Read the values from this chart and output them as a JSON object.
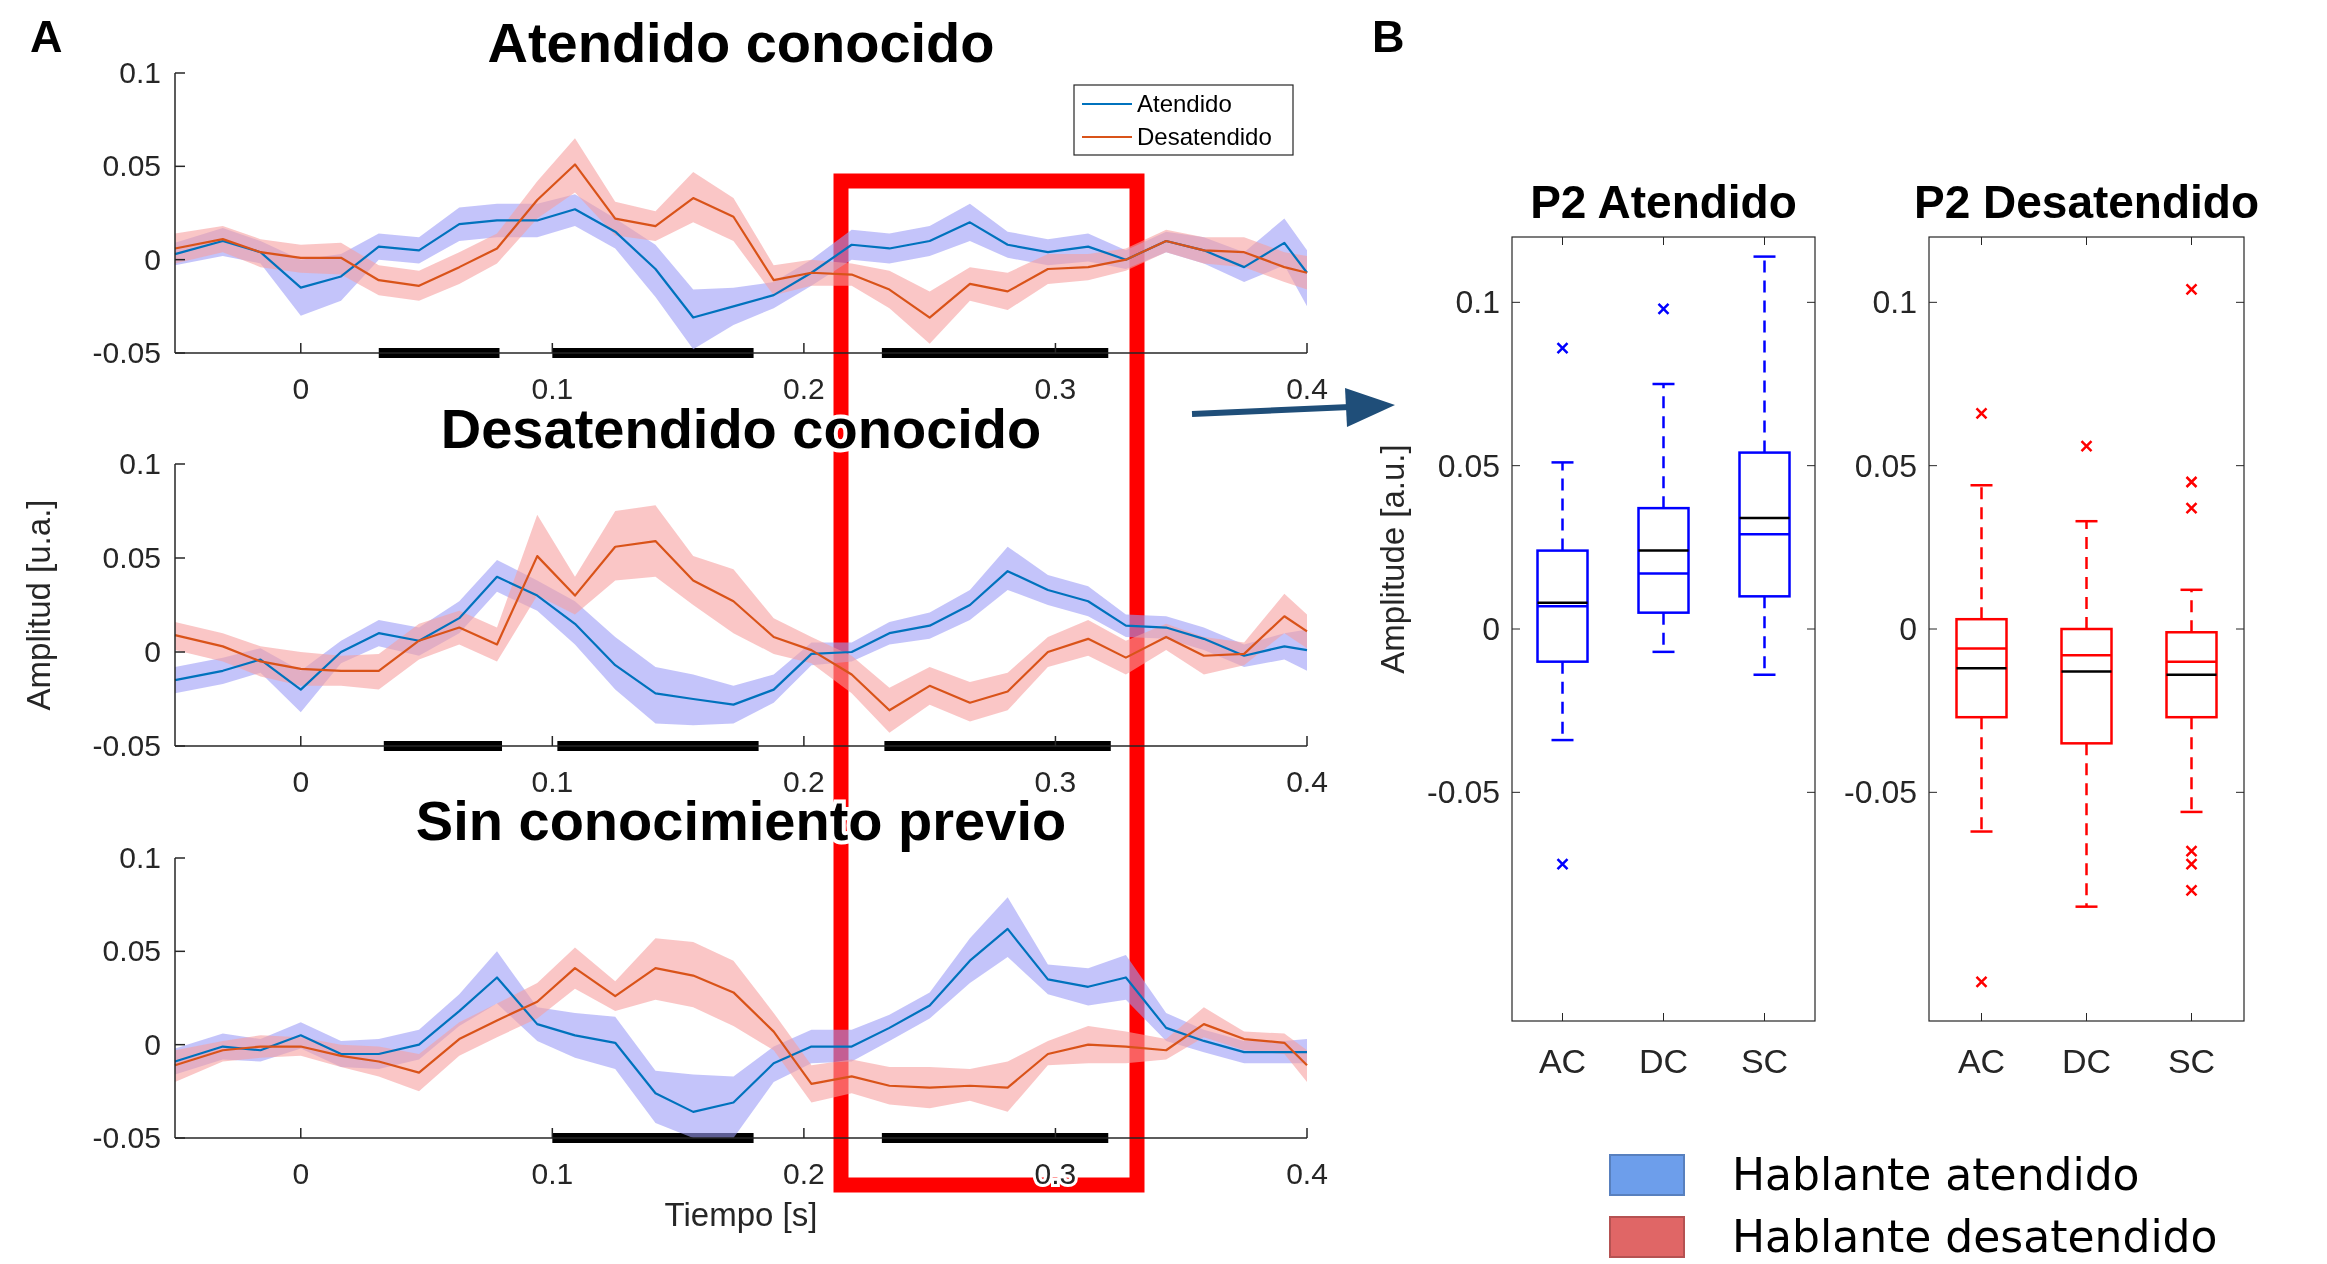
{
  "chart_data": [
    {
      "type": "line",
      "title": "Atendido conocido",
      "annotations": [
        "A"
      ],
      "legend": "top right",
      "xlim": [
        -0.05,
        0.4
      ],
      "xticks": [
        0,
        0.1,
        0.2,
        0.3,
        0.4
      ],
      "ylim": [
        -0.05,
        0.1
      ],
      "yticks": [
        -0.05,
        0,
        0.05,
        0.1
      ],
      "x": [
        -0.05,
        -0.031,
        -0.016,
        0,
        0.016,
        0.031,
        0.047,
        0.063,
        0.078,
        0.094,
        0.109,
        0.125,
        0.141,
        0.156,
        0.172,
        0.188,
        0.203,
        0.219,
        0.234,
        0.25,
        0.266,
        0.281,
        0.297,
        0.313,
        0.328,
        0.344,
        0.359,
        0.375,
        0.391,
        0.4
      ],
      "series": [
        {
          "name": "Atendido",
          "color": "#0072bd",
          "values": [
            0.003,
            0.01,
            0.004,
            -0.015,
            -0.009,
            0.007,
            0.005,
            0.019,
            0.021,
            0.021,
            0.027,
            0.015,
            -0.005,
            -0.031,
            -0.025,
            -0.019,
            -0.007,
            0.008,
            0.006,
            0.01,
            0.02,
            0.008,
            0.004,
            0.007,
            0,
            0.01,
            0.005,
            -0.004,
            0.009,
            -0.007
          ],
          "lower": [
            -0.003,
            0.002,
            -0.002,
            -0.03,
            -0.022,
            0,
            -0.002,
            0.01,
            0.012,
            0.012,
            0.018,
            0.006,
            -0.02,
            -0.048,
            -0.035,
            -0.026,
            -0.014,
            0,
            -0.002,
            0.002,
            0.01,
            0.001,
            -0.003,
            -0.001,
            -0.005,
            0.004,
            -0.002,
            -0.012,
            -0.003,
            -0.025
          ],
          "upper": [
            0.009,
            0.017,
            0.01,
            0,
            0.003,
            0.014,
            0.012,
            0.028,
            0.03,
            0.03,
            0.035,
            0.022,
            0.008,
            -0.016,
            -0.015,
            -0.012,
            0,
            0.016,
            0.014,
            0.018,
            0.03,
            0.015,
            0.011,
            0.014,
            0.005,
            0.015,
            0.012,
            0.004,
            0.022,
            0.005
          ]
        },
        {
          "name": "Desatendido",
          "color": "#d95319",
          "values": [
            0.006,
            0.011,
            0.004,
            0.001,
            0.001,
            -0.011,
            -0.014,
            -0.004,
            0.006,
            0.032,
            0.051,
            0.022,
            0.018,
            0.033,
            0.023,
            -0.011,
            -0.007,
            -0.008,
            -0.016,
            -0.031,
            -0.013,
            -0.017,
            -0.005,
            -0.004,
            0,
            0.01,
            0.005,
            0.004,
            -0.004,
            -0.007
          ],
          "lower": [
            -0.002,
            0.004,
            -0.004,
            -0.007,
            -0.008,
            -0.019,
            -0.022,
            -0.013,
            -0.002,
            0.022,
            0.036,
            0.013,
            0.01,
            0.02,
            0.01,
            -0.019,
            -0.014,
            -0.014,
            -0.026,
            -0.045,
            -0.022,
            -0.027,
            -0.013,
            -0.011,
            -0.006,
            0.004,
            -0.002,
            -0.004,
            -0.012,
            -0.016
          ],
          "upper": [
            0.014,
            0.018,
            0.011,
            0.008,
            0.009,
            -0.003,
            -0.006,
            0.004,
            0.014,
            0.042,
            0.065,
            0.031,
            0.026,
            0.047,
            0.033,
            -0.003,
            0,
            -0.002,
            -0.006,
            -0.017,
            -0.004,
            -0.007,
            0.003,
            0.003,
            0.006,
            0.016,
            0.012,
            0.012,
            0.004,
            0.002
          ]
        },
        {
          "type": "line",
          "color": "#000000",
          "x": [
            0.031,
            0.079
          ],
          "values": [
            -0.05,
            -0.05
          ]
        },
        {
          "type": "line",
          "color": "#000000",
          "x": [
            0.1,
            0.18
          ],
          "values": [
            -0.05,
            -0.05
          ]
        },
        {
          "type": "line",
          "color": "#000000",
          "x": [
            0.231,
            0.321
          ],
          "values": [
            -0.05,
            -0.05
          ]
        }
      ]
    },
    {
      "type": "line",
      "title": "Desatendido conocido",
      "ylabel": "Amplitud [u.a.]",
      "xlim": [
        -0.05,
        0.4
      ],
      "xticks": [
        0,
        0.1,
        0.2,
        0.3,
        0.4
      ],
      "ylim": [
        -0.05,
        0.1
      ],
      "yticks": [
        -0.05,
        0,
        0.05,
        0.1
      ],
      "x": [
        -0.05,
        -0.031,
        -0.016,
        0,
        0.016,
        0.031,
        0.047,
        0.063,
        0.078,
        0.094,
        0.109,
        0.125,
        0.141,
        0.156,
        0.172,
        0.188,
        0.203,
        0.219,
        0.234,
        0.25,
        0.266,
        0.281,
        0.297,
        0.313,
        0.328,
        0.344,
        0.359,
        0.375,
        0.391,
        0.4
      ],
      "series": [
        {
          "color": "#0072bd",
          "values": [
            -0.015,
            -0.01,
            -0.004,
            -0.02,
            0,
            0.01,
            0.006,
            0.018,
            0.04,
            0.03,
            0.015,
            -0.007,
            -0.022,
            -0.025,
            -0.028,
            -0.02,
            -0.001,
            0,
            0.01,
            0.014,
            0.025,
            0.043,
            0.033,
            0.027,
            0.014,
            0.013,
            0.007,
            -0.002,
            0.003,
            0.001
          ],
          "lower": [
            -0.022,
            -0.017,
            -0.011,
            -0.032,
            -0.006,
            0.003,
            -0.002,
            0.01,
            0.032,
            0.022,
            0.004,
            -0.02,
            -0.038,
            -0.039,
            -0.038,
            -0.027,
            -0.007,
            -0.005,
            0.004,
            0.007,
            0.017,
            0.033,
            0.025,
            0.019,
            0.008,
            0.007,
            0.001,
            -0.008,
            -0.004,
            -0.01
          ],
          "upper": [
            -0.008,
            -0.003,
            0.002,
            -0.01,
            0.006,
            0.017,
            0.013,
            0.027,
            0.049,
            0.038,
            0.027,
            0.008,
            -0.008,
            -0.012,
            -0.018,
            -0.012,
            0.005,
            0.005,
            0.016,
            0.021,
            0.033,
            0.056,
            0.041,
            0.035,
            0.02,
            0.019,
            0.013,
            0.004,
            0.01,
            0.012
          ]
        },
        {
          "color": "#d95319",
          "values": [
            0.009,
            0.003,
            -0.005,
            -0.009,
            -0.01,
            -0.01,
            0.006,
            0.013,
            0.004,
            0.051,
            0.03,
            0.056,
            0.059,
            0.038,
            0.027,
            0.008,
            0.001,
            -0.012,
            -0.031,
            -0.018,
            -0.027,
            -0.021,
            0,
            0.007,
            -0.003,
            0.008,
            -0.002,
            -0.001,
            0.019,
            0.011
          ],
          "lower": [
            0.001,
            -0.005,
            -0.013,
            -0.018,
            -0.018,
            -0.02,
            -0.004,
            0.004,
            -0.005,
            0.03,
            0.02,
            0.038,
            0.04,
            0.025,
            0.01,
            -0.001,
            -0.006,
            -0.022,
            -0.043,
            -0.028,
            -0.037,
            -0.031,
            -0.008,
            -0.002,
            -0.012,
            0.001,
            -0.012,
            -0.007,
            0.01,
            0.002
          ],
          "upper": [
            0.016,
            0.01,
            0.003,
            0,
            -0.002,
            -0.001,
            0.015,
            0.022,
            0.013,
            0.073,
            0.04,
            0.075,
            0.078,
            0.051,
            0.044,
            0.018,
            0.008,
            -0.002,
            -0.019,
            -0.008,
            -0.016,
            -0.011,
            0.008,
            0.017,
            0.006,
            0.015,
            0.008,
            0.005,
            0.031,
            0.02
          ]
        },
        {
          "type": "line",
          "color": "#000000",
          "x": [
            0.033,
            0.08
          ],
          "values": [
            -0.05,
            -0.05
          ]
        },
        {
          "type": "line",
          "color": "#000000",
          "x": [
            0.102,
            0.182
          ],
          "values": [
            -0.05,
            -0.05
          ]
        },
        {
          "type": "line",
          "color": "#000000",
          "x": [
            0.232,
            0.322
          ],
          "values": [
            -0.05,
            -0.05
          ]
        }
      ]
    },
    {
      "type": "line",
      "title": "Sin conocimiento previo",
      "xlabel": "Tiempo [s]",
      "xlim": [
        -0.05,
        0.4
      ],
      "xticks": [
        0,
        0.1,
        0.2,
        0.3,
        0.4
      ],
      "ylim": [
        -0.05,
        0.1
      ],
      "yticks": [
        -0.05,
        0,
        0.05,
        0.1
      ],
      "x": [
        -0.05,
        -0.031,
        -0.016,
        0,
        0.016,
        0.031,
        0.047,
        0.063,
        0.078,
        0.094,
        0.109,
        0.125,
        0.141,
        0.156,
        0.172,
        0.188,
        0.203,
        0.219,
        0.234,
        0.25,
        0.266,
        0.281,
        0.297,
        0.313,
        0.328,
        0.344,
        0.359,
        0.375,
        0.391,
        0.4
      ],
      "series": [
        {
          "color": "#0072bd",
          "values": [
            -0.009,
            -0.001,
            -0.003,
            0.005,
            -0.005,
            -0.005,
            0,
            0.018,
            0.036,
            0.011,
            0.005,
            0.001,
            -0.026,
            -0.036,
            -0.031,
            -0.01,
            -0.001,
            -0.001,
            0.009,
            0.021,
            0.045,
            0.062,
            0.035,
            0.031,
            0.036,
            0.009,
            0.002,
            -0.004,
            -0.004,
            -0.004
          ],
          "lower": [
            -0.016,
            -0.008,
            -0.009,
            -0.002,
            -0.012,
            -0.013,
            -0.008,
            0.01,
            0.022,
            0.002,
            -0.007,
            -0.013,
            -0.042,
            -0.05,
            -0.05,
            -0.02,
            -0.01,
            -0.009,
            0.002,
            0.014,
            0.033,
            0.047,
            0.027,
            0.021,
            0.024,
            0.002,
            -0.004,
            -0.01,
            -0.01,
            -0.01
          ],
          "upper": [
            -0.002,
            0.006,
            0.003,
            0.012,
            0.002,
            0.003,
            0.008,
            0.027,
            0.05,
            0.02,
            0.017,
            0.015,
            -0.014,
            -0.016,
            -0.017,
            -0.001,
            0.008,
            0.008,
            0.016,
            0.028,
            0.057,
            0.079,
            0.043,
            0.041,
            0.048,
            0.017,
            0.008,
            0.002,
            0.002,
            0.003
          ]
        },
        {
          "color": "#d95319",
          "values": [
            -0.011,
            -0.003,
            -0.001,
            -0.001,
            -0.006,
            -0.009,
            -0.015,
            0.003,
            0.013,
            0.023,
            0.041,
            0.026,
            0.041,
            0.037,
            0.028,
            0.007,
            -0.021,
            -0.017,
            -0.022,
            -0.023,
            -0.022,
            -0.023,
            -0.005,
            0,
            -0.001,
            -0.003,
            0.011,
            0.003,
            0.001,
            -0.011
          ],
          "lower": [
            -0.02,
            -0.009,
            -0.007,
            -0.006,
            -0.012,
            -0.017,
            -0.025,
            -0.006,
            0.004,
            0.014,
            0.03,
            0.018,
            0.024,
            0.02,
            0.01,
            -0.003,
            -0.031,
            -0.026,
            -0.032,
            -0.034,
            -0.03,
            -0.036,
            -0.011,
            -0.01,
            -0.01,
            -0.008,
            0.004,
            -0.003,
            -0.005,
            -0.02
          ],
          "upper": [
            -0.003,
            0.002,
            0.005,
            0.004,
            0,
            -0.001,
            -0.005,
            0.012,
            0.022,
            0.033,
            0.052,
            0.034,
            0.057,
            0.055,
            0.045,
            0.017,
            -0.011,
            -0.008,
            -0.012,
            -0.012,
            -0.013,
            -0.009,
            0.002,
            0.01,
            0.007,
            0.003,
            0.02,
            0.007,
            0.006,
            -0.003
          ]
        },
        {
          "type": "line",
          "color": "#000000",
          "x": [
            0.1,
            0.18
          ],
          "values": [
            -0.05,
            -0.05
          ]
        },
        {
          "type": "line",
          "color": "#000000",
          "x": [
            0.231,
            0.321
          ],
          "values": [
            -0.05,
            -0.05
          ]
        }
      ]
    },
    {
      "type": "box",
      "title": "P2 Atendido",
      "annotations": [
        "B"
      ],
      "ylabel": "Amplitude [a.u.]",
      "categories": [
        "AC",
        "DC",
        "SC"
      ],
      "ylim": [
        -0.12,
        0.12
      ],
      "yticks": [
        -0.05,
        0,
        0.05,
        0.1
      ],
      "series": [
        {
          "color": "#0000ff",
          "boxes": [
            {
              "low": -0.034,
              "q1": -0.01,
              "median": 0.007,
              "q3": 0.024,
              "high": 0.051,
              "mean": 0.008,
              "outliers": [
                0.086,
                -0.072
              ]
            },
            {
              "low": -0.007,
              "q1": 0.005,
              "median": 0.017,
              "q3": 0.037,
              "high": 0.075,
              "mean": 0.024,
              "outliers": [
                0.098
              ]
            },
            {
              "low": -0.014,
              "q1": 0.01,
              "median": 0.029,
              "q3": 0.054,
              "high": 0.114,
              "mean": 0.034
            }
          ]
        }
      ]
    },
    {
      "type": "box",
      "title": "P2 Desatendido",
      "categories": [
        "AC",
        "DC",
        "SC"
      ],
      "ylim": [
        -0.12,
        0.12
      ],
      "yticks": [
        -0.05,
        0,
        0.05,
        0.1
      ],
      "series": [
        {
          "color": "#ff0000",
          "boxes": [
            {
              "low": -0.062,
              "q1": -0.027,
              "median": -0.006,
              "q3": 0.003,
              "high": 0.044,
              "mean": -0.012,
              "outliers": [
                0.066,
                -0.108
              ]
            },
            {
              "low": -0.085,
              "q1": -0.035,
              "median": -0.008,
              "q3": 0,
              "high": 0.033,
              "mean": -0.013,
              "outliers": [
                0.056
              ]
            },
            {
              "low": -0.056,
              "q1": -0.027,
              "median": -0.01,
              "q3": -0.001,
              "high": 0.012,
              "mean": -0.014,
              "outliers": [
                0.104,
                0.045,
                0.037,
                -0.068,
                -0.072,
                -0.08
              ]
            }
          ]
        }
      ]
    },
    {
      "type": "other",
      "categories": [
        "Hablante atendido",
        "Hablante desatendido"
      ],
      "colors": [
        "#6d9eeb",
        "#e06666"
      ]
    }
  ]
}
